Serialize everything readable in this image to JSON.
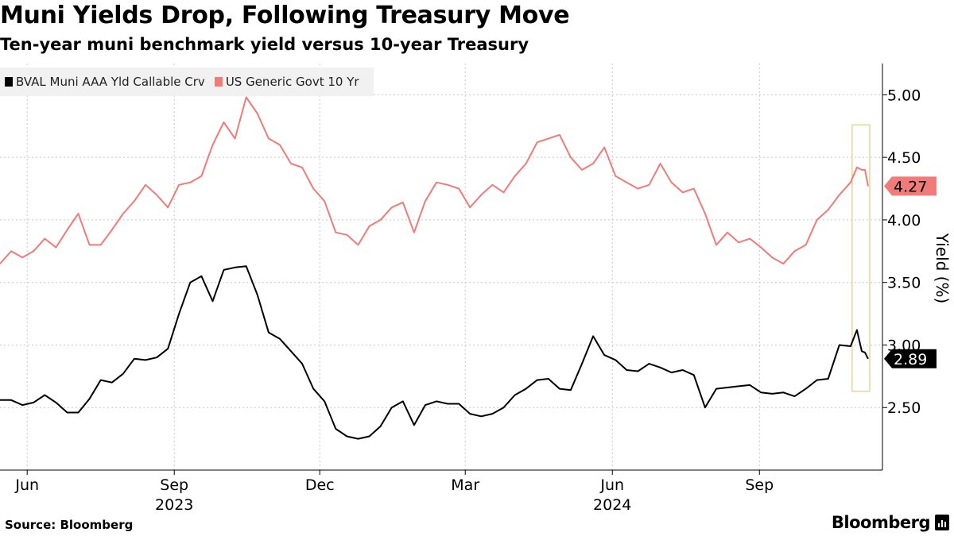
{
  "chart_data": {
    "type": "line",
    "title": "Muni Yields Drop, Following Treasury Move",
    "subtitle": "Ten-year muni benchmark yield versus 10-year Treasury",
    "ylabel": "Yield (%)",
    "ylim": [
      2.0,
      5.25
    ],
    "y_ticks": [
      "2.50",
      "3.00",
      "3.50",
      "4.00",
      "4.50",
      "5.00"
    ],
    "x_ticks": [
      "Jun",
      "Sep",
      "Dec",
      "Mar",
      "Jun",
      "Sep"
    ],
    "year_labels": [
      "2023",
      "2024"
    ],
    "x_range": [
      "2023-05-15",
      "2024-11-08"
    ],
    "grid": true,
    "legend_position": "top-left",
    "series": [
      {
        "name": "BVAL Muni AAA Yld Callable Crv",
        "color": "#000000",
        "last_value_label": "2.89",
        "points": [
          [
            "2023-05-15",
            2.56
          ],
          [
            "2023-05-22",
            2.56
          ],
          [
            "2023-05-29",
            2.52
          ],
          [
            "2023-06-05",
            2.54
          ],
          [
            "2023-06-12",
            2.6
          ],
          [
            "2023-06-19",
            2.54
          ],
          [
            "2023-06-26",
            2.46
          ],
          [
            "2023-07-03",
            2.46
          ],
          [
            "2023-07-10",
            2.57
          ],
          [
            "2023-07-17",
            2.72
          ],
          [
            "2023-07-24",
            2.7
          ],
          [
            "2023-07-31",
            2.77
          ],
          [
            "2023-08-07",
            2.89
          ],
          [
            "2023-08-14",
            2.88
          ],
          [
            "2023-08-21",
            2.9
          ],
          [
            "2023-08-28",
            2.97
          ],
          [
            "2023-09-04",
            3.25
          ],
          [
            "2023-09-11",
            3.5
          ],
          [
            "2023-09-18",
            3.55
          ],
          [
            "2023-09-25",
            3.35
          ],
          [
            "2023-10-02",
            3.6
          ],
          [
            "2023-10-09",
            3.62
          ],
          [
            "2023-10-16",
            3.63
          ],
          [
            "2023-10-23",
            3.4
          ],
          [
            "2023-10-30",
            3.1
          ],
          [
            "2023-11-06",
            3.05
          ],
          [
            "2023-11-13",
            2.95
          ],
          [
            "2023-11-20",
            2.85
          ],
          [
            "2023-11-27",
            2.65
          ],
          [
            "2023-12-04",
            2.55
          ],
          [
            "2023-12-11",
            2.33
          ],
          [
            "2023-12-18",
            2.27
          ],
          [
            "2023-12-25",
            2.25
          ],
          [
            "2024-01-01",
            2.27
          ],
          [
            "2024-01-08",
            2.35
          ],
          [
            "2024-01-15",
            2.5
          ],
          [
            "2024-01-22",
            2.55
          ],
          [
            "2024-01-29",
            2.36
          ],
          [
            "2024-02-05",
            2.52
          ],
          [
            "2024-02-12",
            2.55
          ],
          [
            "2024-02-19",
            2.53
          ],
          [
            "2024-02-26",
            2.53
          ],
          [
            "2024-03-04",
            2.45
          ],
          [
            "2024-03-11",
            2.43
          ],
          [
            "2024-03-18",
            2.45
          ],
          [
            "2024-03-25",
            2.5
          ],
          [
            "2024-04-01",
            2.6
          ],
          [
            "2024-04-08",
            2.65
          ],
          [
            "2024-04-15",
            2.72
          ],
          [
            "2024-04-22",
            2.73
          ],
          [
            "2024-04-29",
            2.65
          ],
          [
            "2024-05-06",
            2.64
          ],
          [
            "2024-05-13",
            2.85
          ],
          [
            "2024-05-20",
            3.07
          ],
          [
            "2024-05-27",
            2.92
          ],
          [
            "2024-06-03",
            2.88
          ],
          [
            "2024-06-10",
            2.8
          ],
          [
            "2024-06-17",
            2.79
          ],
          [
            "2024-06-24",
            2.85
          ],
          [
            "2024-07-01",
            2.82
          ],
          [
            "2024-07-08",
            2.78
          ],
          [
            "2024-07-15",
            2.8
          ],
          [
            "2024-07-22",
            2.76
          ],
          [
            "2024-07-29",
            2.5
          ],
          [
            "2024-08-05",
            2.65
          ],
          [
            "2024-08-12",
            2.66
          ],
          [
            "2024-08-19",
            2.67
          ],
          [
            "2024-08-26",
            2.68
          ],
          [
            "2024-09-02",
            2.62
          ],
          [
            "2024-09-09",
            2.61
          ],
          [
            "2024-09-16",
            2.62
          ],
          [
            "2024-09-23",
            2.59
          ],
          [
            "2024-09-30",
            2.65
          ],
          [
            "2024-10-07",
            2.72
          ],
          [
            "2024-10-14",
            2.73
          ],
          [
            "2024-10-21",
            3.0
          ],
          [
            "2024-10-28",
            2.99
          ],
          [
            "2024-11-01",
            3.12
          ],
          [
            "2024-11-04",
            2.95
          ],
          [
            "2024-11-06",
            2.94
          ],
          [
            "2024-11-08",
            2.89
          ]
        ]
      },
      {
        "name": "US Generic Govt 10 Yr",
        "color": "#f07b78",
        "last_value_label": "4.27",
        "points": [
          [
            "2023-05-15",
            3.65
          ],
          [
            "2023-05-22",
            3.75
          ],
          [
            "2023-05-29",
            3.7
          ],
          [
            "2023-06-05",
            3.75
          ],
          [
            "2023-06-12",
            3.85
          ],
          [
            "2023-06-19",
            3.78
          ],
          [
            "2023-06-26",
            3.92
          ],
          [
            "2023-07-03",
            4.05
          ],
          [
            "2023-07-10",
            3.8
          ],
          [
            "2023-07-17",
            3.8
          ],
          [
            "2023-07-24",
            3.92
          ],
          [
            "2023-07-31",
            4.05
          ],
          [
            "2023-08-07",
            4.15
          ],
          [
            "2023-08-14",
            4.28
          ],
          [
            "2023-08-21",
            4.2
          ],
          [
            "2023-08-28",
            4.1
          ],
          [
            "2023-09-04",
            4.28
          ],
          [
            "2023-09-11",
            4.3
          ],
          [
            "2023-09-18",
            4.35
          ],
          [
            "2023-09-25",
            4.6
          ],
          [
            "2023-10-02",
            4.78
          ],
          [
            "2023-10-09",
            4.65
          ],
          [
            "2023-10-16",
            4.98
          ],
          [
            "2023-10-23",
            4.85
          ],
          [
            "2023-10-30",
            4.65
          ],
          [
            "2023-11-06",
            4.6
          ],
          [
            "2023-11-13",
            4.45
          ],
          [
            "2023-11-20",
            4.42
          ],
          [
            "2023-11-27",
            4.25
          ],
          [
            "2023-12-04",
            4.15
          ],
          [
            "2023-12-11",
            3.9
          ],
          [
            "2023-12-18",
            3.88
          ],
          [
            "2023-12-25",
            3.8
          ],
          [
            "2024-01-01",
            3.95
          ],
          [
            "2024-01-08",
            4.0
          ],
          [
            "2024-01-15",
            4.1
          ],
          [
            "2024-01-22",
            4.14
          ],
          [
            "2024-01-29",
            3.9
          ],
          [
            "2024-02-05",
            4.15
          ],
          [
            "2024-02-12",
            4.3
          ],
          [
            "2024-02-19",
            4.28
          ],
          [
            "2024-02-26",
            4.25
          ],
          [
            "2024-03-04",
            4.1
          ],
          [
            "2024-03-11",
            4.2
          ],
          [
            "2024-03-18",
            4.28
          ],
          [
            "2024-03-25",
            4.22
          ],
          [
            "2024-04-01",
            4.35
          ],
          [
            "2024-04-08",
            4.45
          ],
          [
            "2024-04-15",
            4.62
          ],
          [
            "2024-04-22",
            4.65
          ],
          [
            "2024-04-29",
            4.68
          ],
          [
            "2024-05-06",
            4.5
          ],
          [
            "2024-05-13",
            4.4
          ],
          [
            "2024-05-20",
            4.45
          ],
          [
            "2024-05-27",
            4.58
          ],
          [
            "2024-06-03",
            4.35
          ],
          [
            "2024-06-10",
            4.3
          ],
          [
            "2024-06-17",
            4.25
          ],
          [
            "2024-06-24",
            4.28
          ],
          [
            "2024-07-01",
            4.45
          ],
          [
            "2024-07-08",
            4.3
          ],
          [
            "2024-07-15",
            4.22
          ],
          [
            "2024-07-22",
            4.25
          ],
          [
            "2024-07-29",
            4.05
          ],
          [
            "2024-08-05",
            3.8
          ],
          [
            "2024-08-12",
            3.9
          ],
          [
            "2024-08-19",
            3.82
          ],
          [
            "2024-08-26",
            3.85
          ],
          [
            "2024-09-02",
            3.78
          ],
          [
            "2024-09-09",
            3.7
          ],
          [
            "2024-09-16",
            3.65
          ],
          [
            "2024-09-23",
            3.75
          ],
          [
            "2024-09-30",
            3.8
          ],
          [
            "2024-10-07",
            4.0
          ],
          [
            "2024-10-14",
            4.08
          ],
          [
            "2024-10-21",
            4.2
          ],
          [
            "2024-10-28",
            4.3
          ],
          [
            "2024-11-01",
            4.42
          ],
          [
            "2024-11-04",
            4.4
          ],
          [
            "2024-11-06",
            4.4
          ],
          [
            "2024-11-08",
            4.27
          ]
        ]
      }
    ],
    "annotation": "highlight box around the most recent values"
  },
  "source": "Source: Bloomberg",
  "brand": "Bloomberg",
  "colors": {
    "muni": "#000000",
    "treasury": "#f07b78",
    "highlight": "#e3c980",
    "grid": "#c8c8c8"
  }
}
